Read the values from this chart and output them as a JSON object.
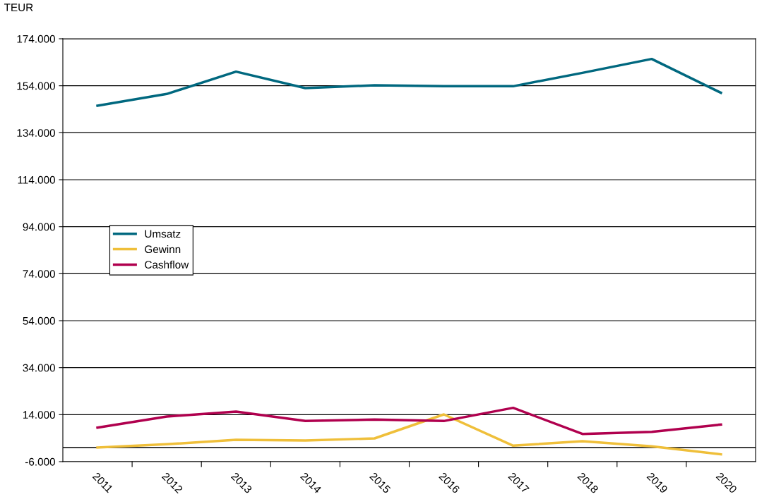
{
  "chart_data": {
    "type": "line",
    "ylabel": "TEUR",
    "categories": [
      "2011",
      "2012",
      "2013",
      "2014",
      "2015",
      "2016",
      "2017",
      "2018",
      "2019",
      "2020"
    ],
    "series": [
      {
        "name": "Umsatz",
        "color": "#00687f",
        "values": [
          145500,
          150500,
          160000,
          153000,
          154200,
          153800,
          153800,
          159500,
          165400,
          151000
        ]
      },
      {
        "name": "Gewinn",
        "color": "#efbf3a",
        "values": [
          0,
          1400,
          3300,
          3000,
          3900,
          14100,
          800,
          2700,
          500,
          -2900
        ]
      },
      {
        "name": "Cashflow",
        "color": "#b0004e",
        "values": [
          8500,
          13200,
          15300,
          11300,
          11900,
          11300,
          16900,
          5800,
          6700,
          9800
        ]
      }
    ],
    "ylim": [
      -6000,
      174000
    ],
    "yticks": [
      {
        "value": -6000,
        "label": "-6.000"
      },
      {
        "value": 14000,
        "label": "14.000"
      },
      {
        "value": 34000,
        "label": "34.000"
      },
      {
        "value": 54000,
        "label": "54.000"
      },
      {
        "value": 74000,
        "label": "74.000"
      },
      {
        "value": 94000,
        "label": "94.000"
      },
      {
        "value": 114000,
        "label": "114.000"
      },
      {
        "value": 134000,
        "label": "134.000"
      },
      {
        "value": 154000,
        "label": "154.000"
      },
      {
        "value": 174000,
        "label": "174.000"
      }
    ],
    "ref_lines": [
      {
        "axis": "y",
        "value": 0,
        "color": "#000000"
      }
    ],
    "grid": "y",
    "legend": "center left",
    "marker": "none",
    "line_style": "solid"
  }
}
